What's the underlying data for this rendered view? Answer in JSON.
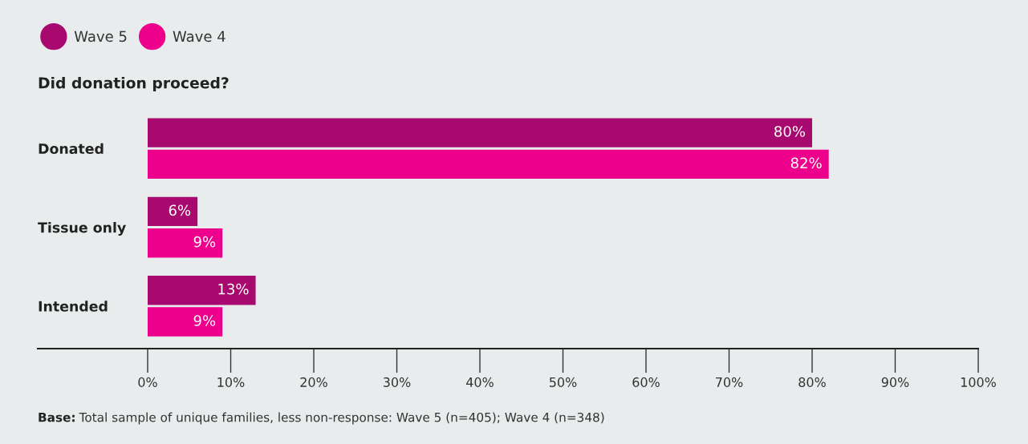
{
  "chart_data": {
    "type": "bar",
    "orientation": "horizontal",
    "title": "Did donation proceed?",
    "categories": [
      "Donated",
      "Tissue only",
      "Intended"
    ],
    "series": [
      {
        "name": "Wave 5",
        "color": "#a8096f",
        "values": [
          80,
          6,
          13
        ],
        "value_labels": [
          "80%",
          "6%",
          "13%"
        ]
      },
      {
        "name": "Wave 4",
        "color": "#ec008c",
        "values": [
          82,
          9,
          9
        ],
        "value_labels": [
          "82%",
          "9%",
          "9%"
        ]
      }
    ],
    "xlim": [
      0,
      100
    ],
    "xticks": [
      {
        "value": 0,
        "label": "0%"
      },
      {
        "value": 10,
        "label": "10%"
      },
      {
        "value": 20,
        "label": "20%"
      },
      {
        "value": 30,
        "label": "30%"
      },
      {
        "value": 40,
        "label": "40%"
      },
      {
        "value": 50,
        "label": "50%"
      },
      {
        "value": 60,
        "label": "60%"
      },
      {
        "value": 70,
        "label": "70%"
      },
      {
        "value": 80,
        "label": "80%"
      },
      {
        "value": 90,
        "label": "90%"
      },
      {
        "value": 100,
        "label": "100%"
      }
    ],
    "legend": "top left",
    "grid": false,
    "annotations": [
      "Base: Total sample of unique families, less non-response: Wave 5 (n=405); Wave 4 (n=348)"
    ]
  }
}
